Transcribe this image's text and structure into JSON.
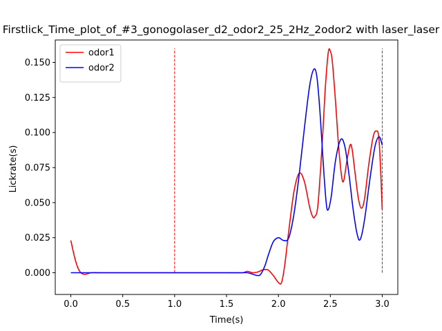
{
  "chart_data": {
    "type": "line",
    "title": "Firstlick_Time_plot_of_#3_gonogolaser_d2_odor2_25_2Hz_2odor2 with laser_laser",
    "xlabel": "Time(s)",
    "ylabel": "Lickrate(s)",
    "xlim": [
      -0.15,
      3.15
    ],
    "ylim": [
      -0.0155,
      0.166
    ],
    "xticks": [
      0.0,
      0.5,
      1.0,
      1.5,
      2.0,
      2.5,
      3.0
    ],
    "xtick_labels": [
      "0.0",
      "0.5",
      "1.0",
      "1.5",
      "2.0",
      "2.5",
      "3.0"
    ],
    "yticks": [
      0.0,
      0.025,
      0.05,
      0.075,
      0.1,
      0.125,
      0.15
    ],
    "ytick_labels": [
      "0.000",
      "0.025",
      "0.050",
      "0.075",
      "0.100",
      "0.125",
      "0.150"
    ],
    "grid": false,
    "legend_position": "top-left",
    "series": [
      {
        "name": "odor1",
        "color": "#ff0000",
        "points": [
          [
            0.0,
            0.023
          ],
          [
            0.03,
            0.013
          ],
          [
            0.06,
            0.005
          ],
          [
            0.09,
            0.0005
          ],
          [
            0.12,
            -0.001
          ],
          [
            0.15,
            -0.001
          ],
          [
            0.2,
            0.0
          ],
          [
            0.3,
            0.0
          ],
          [
            0.5,
            0.0
          ],
          [
            1.0,
            0.0
          ],
          [
            1.5,
            0.0
          ],
          [
            1.65,
            0.0
          ],
          [
            1.7,
            0.001
          ],
          [
            1.75,
            0.0
          ],
          [
            1.8,
            0.0005
          ],
          [
            1.85,
            0.002
          ],
          [
            1.9,
            0.002
          ],
          [
            1.95,
            -0.002
          ],
          [
            2.0,
            -0.007
          ],
          [
            2.03,
            -0.007
          ],
          [
            2.06,
            0.005
          ],
          [
            2.1,
            0.03
          ],
          [
            2.15,
            0.058
          ],
          [
            2.2,
            0.071
          ],
          [
            2.25,
            0.065
          ],
          [
            2.3,
            0.047
          ],
          [
            2.33,
            0.04
          ],
          [
            2.35,
            0.04
          ],
          [
            2.38,
            0.048
          ],
          [
            2.42,
            0.09
          ],
          [
            2.45,
            0.13
          ],
          [
            2.48,
            0.157
          ],
          [
            2.5,
            0.158
          ],
          [
            2.52,
            0.15
          ],
          [
            2.55,
            0.122
          ],
          [
            2.58,
            0.09
          ],
          [
            2.61,
            0.068
          ],
          [
            2.63,
            0.066
          ],
          [
            2.66,
            0.08
          ],
          [
            2.69,
            0.091
          ],
          [
            2.71,
            0.088
          ],
          [
            2.74,
            0.07
          ],
          [
            2.77,
            0.053
          ],
          [
            2.8,
            0.046
          ],
          [
            2.83,
            0.053
          ],
          [
            2.87,
            0.077
          ],
          [
            2.91,
            0.096
          ],
          [
            2.94,
            0.101
          ],
          [
            2.97,
            0.094
          ],
          [
            3.0,
            0.045
          ]
        ]
      },
      {
        "name": "odor2",
        "color": "#0000ff",
        "points": [
          [
            0.0,
            0.0
          ],
          [
            0.5,
            0.0
          ],
          [
            1.0,
            0.0
          ],
          [
            1.5,
            0.0
          ],
          [
            1.6,
            0.0
          ],
          [
            1.65,
            0.0
          ],
          [
            1.7,
            0.0
          ],
          [
            1.75,
            -0.001
          ],
          [
            1.8,
            -0.002
          ],
          [
            1.83,
            -0.001
          ],
          [
            1.87,
            0.005
          ],
          [
            1.9,
            0.012
          ],
          [
            1.95,
            0.022
          ],
          [
            2.0,
            0.025
          ],
          [
            2.05,
            0.023
          ],
          [
            2.1,
            0.025
          ],
          [
            2.15,
            0.042
          ],
          [
            2.2,
            0.07
          ],
          [
            2.25,
            0.103
          ],
          [
            2.3,
            0.133
          ],
          [
            2.34,
            0.145
          ],
          [
            2.37,
            0.14
          ],
          [
            2.4,
            0.115
          ],
          [
            2.43,
            0.08
          ],
          [
            2.46,
            0.05
          ],
          [
            2.48,
            0.045
          ],
          [
            2.51,
            0.055
          ],
          [
            2.55,
            0.08
          ],
          [
            2.6,
            0.095
          ],
          [
            2.64,
            0.09
          ],
          [
            2.68,
            0.07
          ],
          [
            2.72,
            0.045
          ],
          [
            2.76,
            0.027
          ],
          [
            2.79,
            0.024
          ],
          [
            2.83,
            0.038
          ],
          [
            2.88,
            0.066
          ],
          [
            2.93,
            0.09
          ],
          [
            2.97,
            0.097
          ],
          [
            3.0,
            0.091
          ]
        ]
      }
    ],
    "vlines": [
      {
        "x": 1.0,
        "y0": 0.0,
        "y1": 0.16,
        "color": "#ff0000",
        "style": "dashed"
      },
      {
        "x": 3.0,
        "y0": 0.0,
        "y1": 0.16,
        "color": "#008000",
        "style": "dashed"
      }
    ]
  }
}
